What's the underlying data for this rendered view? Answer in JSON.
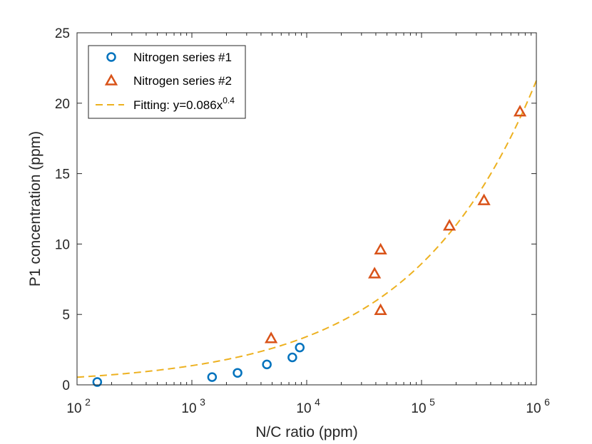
{
  "chart_data": {
    "type": "scatter",
    "xscale": "log",
    "xlim": [
      100,
      1000000
    ],
    "ylim": [
      0,
      25
    ],
    "xlabel": "N/C ratio (ppm)",
    "ylabel": "P1 concentration (ppm)",
    "x_ticks": [
      {
        "value": 100,
        "base": "10",
        "exp": "2"
      },
      {
        "value": 1000,
        "base": "10",
        "exp": "3"
      },
      {
        "value": 10000,
        "base": "10",
        "exp": "4"
      },
      {
        "value": 100000,
        "base": "10",
        "exp": "5"
      },
      {
        "value": 1000000,
        "base": "10",
        "exp": "6"
      }
    ],
    "y_ticks": [
      {
        "value": 0,
        "label": "0"
      },
      {
        "value": 5,
        "label": "5"
      },
      {
        "value": 10,
        "label": "10"
      },
      {
        "value": 15,
        "label": "15"
      },
      {
        "value": 20,
        "label": "20"
      },
      {
        "value": 25,
        "label": "25"
      }
    ],
    "grid": false,
    "legend_position": "top-left",
    "series": [
      {
        "name": "Nitrogen series #1",
        "marker": "circle",
        "color": "#0072BD",
        "points": [
          {
            "x": 150,
            "y": 0.2
          },
          {
            "x": 1500,
            "y": 0.55
          },
          {
            "x": 2500,
            "y": 0.85
          },
          {
            "x": 4500,
            "y": 1.45
          },
          {
            "x": 7500,
            "y": 1.95
          },
          {
            "x": 8700,
            "y": 2.65
          }
        ]
      },
      {
        "name": "Nitrogen series #2",
        "marker": "triangle",
        "color": "#D95319",
        "points": [
          {
            "x": 4900,
            "y": 3.3
          },
          {
            "x": 39000,
            "y": 7.9
          },
          {
            "x": 44000,
            "y": 9.6
          },
          {
            "x": 44000,
            "y": 5.3
          },
          {
            "x": 175000,
            "y": 11.3
          },
          {
            "x": 350000,
            "y": 13.1
          },
          {
            "x": 720000,
            "y": 19.4
          }
        ]
      }
    ],
    "fit": {
      "name_prefix": "Fitting: y=0.086x",
      "name_exp": "0.4",
      "coefficient": 0.086,
      "exponent": 0.4,
      "style": "dashed",
      "color": "#EDB120"
    }
  }
}
